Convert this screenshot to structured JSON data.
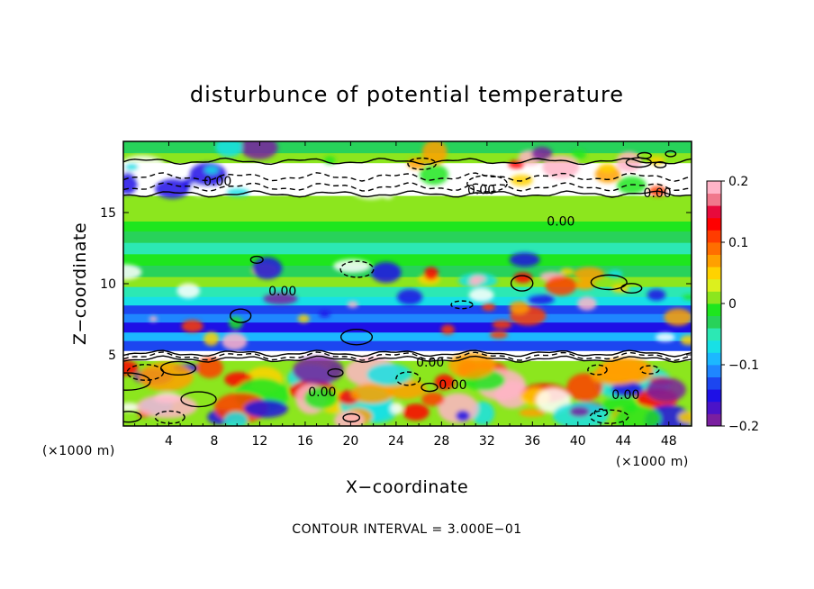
{
  "chart_data": {
    "type": "heatmap",
    "title": "disturbunce of potential temperature",
    "xlabel": "X−coordinate",
    "ylabel": "Z−coordinate",
    "x_unit_label": "(×1000 m)",
    "y_unit_label": "(×1000 m)",
    "footer": "CONTOUR INTERVAL = 3.000E−01",
    "xlim": [
      0,
      50
    ],
    "ylim": [
      0,
      20
    ],
    "x_ticks": [
      4,
      8,
      12,
      16,
      20,
      24,
      28,
      32,
      36,
      40,
      44,
      48
    ],
    "x_tick_labels": [
      "4",
      "8",
      "12",
      "16",
      "20",
      "24",
      "28",
      "32",
      "36",
      "40",
      "44",
      "48"
    ],
    "y_ticks": [
      5,
      10,
      15
    ],
    "y_tick_labels": [
      "5",
      "10",
      "15"
    ],
    "contour_interval": 0.3,
    "contour_labels": [
      {
        "text": "0.00",
        "x": 8.3,
        "z": 17.2
      },
      {
        "text": "0.00",
        "x": 31.5,
        "z": 16.6
      },
      {
        "text": "0.00",
        "x": 38.5,
        "z": 14.4
      },
      {
        "text": "0.00",
        "x": 47.0,
        "z": 16.4
      },
      {
        "text": "0.00",
        "x": 14.0,
        "z": 9.5
      },
      {
        "text": "0.00",
        "x": 27.0,
        "z": 4.5
      },
      {
        "text": "0.00",
        "x": 29.0,
        "z": 2.9
      },
      {
        "text": "0.00",
        "x": 17.5,
        "z": 2.4
      },
      {
        "text": "0.00",
        "x": 44.2,
        "z": 2.2
      }
    ],
    "colorbar": {
      "min": -0.2,
      "max": 0.2,
      "ticks": [
        0.2,
        0.1,
        0,
        -0.1,
        -0.2
      ],
      "tick_labels": [
        "0.2",
        "0.1",
        "0",
        "−0.1",
        "−0.2"
      ],
      "colors": [
        "#7a1fa0",
        "#4b13c8",
        "#1e10e6",
        "#1c46f0",
        "#1f86ff",
        "#1cb8ff",
        "#18e0e6",
        "#2ce8b4",
        "#28d25a",
        "#1ee61e",
        "#8ce61e",
        "#dcf01e",
        "#ffd200",
        "#ffa000",
        "#ff6e00",
        "#ff3c00",
        "#ff0000",
        "#e80a3c",
        "#f0788c",
        "#ffb4c8"
      ]
    },
    "bands": [
      {
        "z": [
          0.0,
          4.6
        ],
        "value": 0.02
      },
      {
        "z": [
          4.6,
          5.3
        ],
        "value": 0.25
      },
      {
        "z": [
          5.3,
          6.0
        ],
        "value": -0.13
      },
      {
        "z": [
          6.0,
          6.6
        ],
        "value": -0.09
      },
      {
        "z": [
          6.6,
          7.3
        ],
        "value": -0.15
      },
      {
        "z": [
          7.3,
          7.9
        ],
        "value": -0.11
      },
      {
        "z": [
          7.9,
          8.5
        ],
        "value": -0.14
      },
      {
        "z": [
          8.5,
          9.1
        ],
        "value": -0.08
      },
      {
        "z": [
          9.1,
          9.8
        ],
        "value": -0.05
      },
      {
        "z": [
          9.8,
          10.5
        ],
        "value": 0.0
      },
      {
        "z": [
          10.5,
          11.3
        ],
        "value": -0.03
      },
      {
        "z": [
          11.3,
          12.1
        ],
        "value": -0.01
      },
      {
        "z": [
          12.1,
          12.9
        ],
        "value": -0.05
      },
      {
        "z": [
          12.9,
          13.7
        ],
        "value": -0.03
      },
      {
        "z": [
          13.7,
          14.4
        ],
        "value": -0.02
      },
      {
        "z": [
          14.4,
          15.3
        ],
        "value": 0.0
      },
      {
        "z": [
          15.3,
          16.2
        ],
        "value": 0.02
      },
      {
        "z": [
          16.2,
          18.5
        ],
        "value": 0.25
      },
      {
        "z": [
          18.5,
          19.2
        ],
        "value": 0.0
      },
      {
        "z": [
          19.2,
          20.0
        ],
        "value": -0.03
      }
    ],
    "grid": false
  }
}
